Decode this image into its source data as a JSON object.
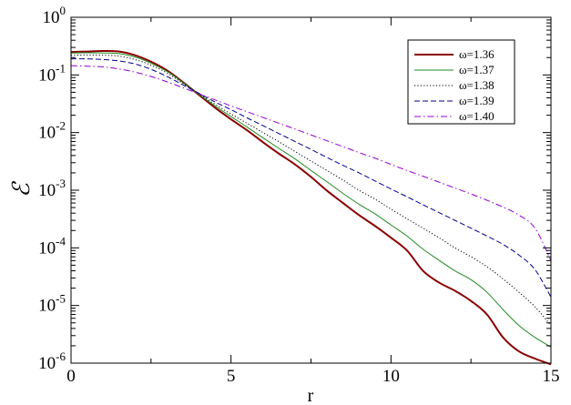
{
  "chart_data": {
    "type": "line",
    "title": "",
    "xlabel": "r",
    "ylabel": "ℰ",
    "xlim": [
      0,
      15
    ],
    "ylim": [
      1e-06,
      1
    ],
    "yscale": "log",
    "grid": false,
    "legend_position": "top-right",
    "x_ticks": [
      {
        "value": 0,
        "label": "0"
      },
      {
        "value": 5,
        "label": "5"
      },
      {
        "value": 10,
        "label": "10"
      },
      {
        "value": 15,
        "label": "15"
      }
    ],
    "y_ticks": [
      {
        "value": 1,
        "base": "10",
        "exp": "0"
      },
      {
        "value": 0.1,
        "base": "10",
        "exp": "-1"
      },
      {
        "value": 0.01,
        "base": "10",
        "exp": "-2"
      },
      {
        "value": 0.001,
        "base": "10",
        "exp": "-3"
      },
      {
        "value": 0.0001,
        "base": "10",
        "exp": "-4"
      },
      {
        "value": 1e-05,
        "base": "10",
        "exp": "-5"
      },
      {
        "value": 1e-06,
        "base": "10",
        "exp": "-6"
      }
    ],
    "series": [
      {
        "name": "ω=1.36",
        "color": "#8b0000",
        "dash": "solid",
        "width": 2,
        "points": [
          [
            0,
            0.25
          ],
          [
            0.5,
            0.255
          ],
          [
            1.0,
            0.26
          ],
          [
            1.5,
            0.255
          ],
          [
            2.0,
            0.22
          ],
          [
            2.5,
            0.17
          ],
          [
            3.0,
            0.12
          ],
          [
            3.5,
            0.075
          ],
          [
            4.0,
            0.045
          ],
          [
            4.5,
            0.027
          ],
          [
            5.0,
            0.017
          ],
          [
            5.5,
            0.011
          ],
          [
            6.0,
            0.0068
          ],
          [
            6.5,
            0.0043
          ],
          [
            7.0,
            0.0028
          ],
          [
            7.5,
            0.0017
          ],
          [
            8.0,
            0.00098
          ],
          [
            8.5,
            0.0006
          ],
          [
            9.0,
            0.00037
          ],
          [
            9.5,
            0.00024
          ],
          [
            10.0,
            0.00015
          ],
          [
            10.5,
            9e-05
          ],
          [
            11.0,
            4e-05
          ],
          [
            11.5,
            2.5e-05
          ],
          [
            12.0,
            1.8e-05
          ],
          [
            12.5,
            1.2e-05
          ],
          [
            13.0,
            7e-06
          ],
          [
            13.5,
            2.8e-06
          ],
          [
            14.0,
            1.6e-06
          ],
          [
            14.5,
            1.2e-06
          ],
          [
            15.0,
            9.5e-07
          ]
        ]
      },
      {
        "name": "ω=1.37",
        "color": "#228b22",
        "dash": "solid",
        "width": 1,
        "points": [
          [
            0,
            0.24
          ],
          [
            0.5,
            0.242
          ],
          [
            1.0,
            0.24
          ],
          [
            1.5,
            0.235
          ],
          [
            2.0,
            0.205
          ],
          [
            2.5,
            0.16
          ],
          [
            3.0,
            0.115
          ],
          [
            3.5,
            0.074
          ],
          [
            4.0,
            0.046
          ],
          [
            4.5,
            0.029
          ],
          [
            5.0,
            0.019
          ],
          [
            5.5,
            0.0125
          ],
          [
            6.0,
            0.0081
          ],
          [
            6.5,
            0.0053
          ],
          [
            7.0,
            0.0035
          ],
          [
            7.5,
            0.0022
          ],
          [
            8.0,
            0.0014
          ],
          [
            8.5,
            0.00088
          ],
          [
            9.0,
            0.00057
          ],
          [
            9.5,
            0.00039
          ],
          [
            10.0,
            0.00025
          ],
          [
            10.5,
            0.00016
          ],
          [
            11.0,
            9.5e-05
          ],
          [
            11.5,
            6.1e-05
          ],
          [
            12.0,
            4e-05
          ],
          [
            12.5,
            2.8e-05
          ],
          [
            13.0,
            1.7e-05
          ],
          [
            13.5,
            8.5e-06
          ],
          [
            14.0,
            4.5e-06
          ],
          [
            14.5,
            2.8e-06
          ],
          [
            15.0,
            1.9e-06
          ]
        ]
      },
      {
        "name": "ω=1.38",
        "color": "#000000",
        "dash": "1.2,2.2",
        "width": 1,
        "points": [
          [
            0,
            0.22
          ],
          [
            0.5,
            0.222
          ],
          [
            1.0,
            0.22
          ],
          [
            1.5,
            0.212
          ],
          [
            2.0,
            0.185
          ],
          [
            2.5,
            0.148
          ],
          [
            3.0,
            0.108
          ],
          [
            3.5,
            0.071
          ],
          [
            4.0,
            0.047
          ],
          [
            4.5,
            0.031
          ],
          [
            5.0,
            0.021
          ],
          [
            5.5,
            0.0145
          ],
          [
            6.0,
            0.01
          ],
          [
            6.5,
            0.0069
          ],
          [
            7.0,
            0.0047
          ],
          [
            7.5,
            0.0032
          ],
          [
            8.0,
            0.0022
          ],
          [
            8.5,
            0.0015
          ],
          [
            9.0,
            0.001
          ],
          [
            9.5,
            0.0007
          ],
          [
            10.0,
            0.00047
          ],
          [
            10.5,
            0.00032
          ],
          [
            11.0,
            0.00022
          ],
          [
            11.5,
            0.00015
          ],
          [
            12.0,
            0.0001
          ],
          [
            12.5,
            7e-05
          ],
          [
            13.0,
            4.7e-05
          ],
          [
            13.5,
            2.9e-05
          ],
          [
            14.0,
            1.7e-05
          ],
          [
            14.5,
            9.5e-06
          ],
          [
            15.0,
            4.5e-06
          ]
        ]
      },
      {
        "name": "ω=1.39",
        "color": "#00008b",
        "dash": "6,3",
        "width": 1,
        "points": [
          [
            0,
            0.19
          ],
          [
            0.5,
            0.19
          ],
          [
            1.0,
            0.185
          ],
          [
            1.5,
            0.175
          ],
          [
            2.0,
            0.155
          ],
          [
            2.5,
            0.125
          ],
          [
            3.0,
            0.094
          ],
          [
            3.5,
            0.067
          ],
          [
            4.0,
            0.048
          ],
          [
            4.5,
            0.034
          ],
          [
            5.0,
            0.025
          ],
          [
            5.5,
            0.018
          ],
          [
            6.0,
            0.0132
          ],
          [
            6.5,
            0.0096
          ],
          [
            7.0,
            0.007
          ],
          [
            7.5,
            0.0051
          ],
          [
            8.0,
            0.0037
          ],
          [
            8.5,
            0.0027
          ],
          [
            9.0,
            0.002
          ],
          [
            9.5,
            0.00145
          ],
          [
            10.0,
            0.00105
          ],
          [
            10.5,
            0.00077
          ],
          [
            11.0,
            0.00056
          ],
          [
            11.5,
            0.00041
          ],
          [
            12.0,
            0.0003
          ],
          [
            12.5,
            0.00022
          ],
          [
            13.0,
            0.00016
          ],
          [
            13.5,
            0.000115
          ],
          [
            14.0,
            7.5e-05
          ],
          [
            14.5,
            4.2e-05
          ],
          [
            15.0,
            1.4e-05
          ]
        ]
      },
      {
        "name": "ω=1.40",
        "color": "#9400d3",
        "dash": "7,3,1.5,3",
        "width": 1,
        "points": [
          [
            0,
            0.145
          ],
          [
            0.5,
            0.142
          ],
          [
            1.0,
            0.138
          ],
          [
            1.5,
            0.127
          ],
          [
            2.0,
            0.112
          ],
          [
            2.5,
            0.094
          ],
          [
            3.0,
            0.076
          ],
          [
            3.5,
            0.06
          ],
          [
            4.0,
            0.047
          ],
          [
            4.5,
            0.037
          ],
          [
            5.0,
            0.029
          ],
          [
            5.5,
            0.023
          ],
          [
            6.0,
            0.0183
          ],
          [
            6.5,
            0.0145
          ],
          [
            7.0,
            0.0115
          ],
          [
            7.5,
            0.0091
          ],
          [
            8.0,
            0.0072
          ],
          [
            8.5,
            0.0057
          ],
          [
            9.0,
            0.0045
          ],
          [
            9.5,
            0.0036
          ],
          [
            10.0,
            0.0028
          ],
          [
            10.5,
            0.0022
          ],
          [
            11.0,
            0.00175
          ],
          [
            11.5,
            0.00138
          ],
          [
            12.0,
            0.00109
          ],
          [
            12.5,
            0.00086
          ],
          [
            13.0,
            0.00067
          ],
          [
            13.5,
            0.00051
          ],
          [
            14.0,
            0.00037
          ],
          [
            14.5,
            0.00022
          ],
          [
            15.0,
            6e-05
          ]
        ]
      }
    ]
  }
}
